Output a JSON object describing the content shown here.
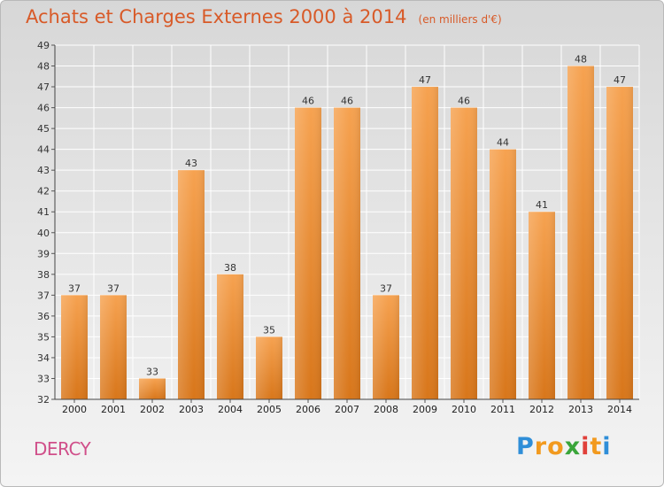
{
  "header": {
    "title": "Achats et Charges Externes 2000 à 2014",
    "unit": "(en milliers d'€)"
  },
  "footer": {
    "commune": "DERCY",
    "logo_letters": [
      "P",
      "r",
      "o",
      "x",
      "i",
      "t",
      "i"
    ],
    "logo_colors": [
      "#2f8ed8",
      "#f29a1f",
      "#f29a1f",
      "#3aa53a",
      "#e0403a",
      "#f29a1f",
      "#2f8ed8"
    ]
  },
  "chart_data": {
    "type": "bar",
    "title": "Achats et Charges Externes 2000 à 2014",
    "subtitle": "(en milliers d'€)",
    "categories": [
      "2000",
      "2001",
      "2002",
      "2003",
      "2004",
      "2005",
      "2006",
      "2007",
      "2008",
      "2009",
      "2010",
      "2011",
      "2012",
      "2013",
      "2014"
    ],
    "values": [
      37,
      37,
      33,
      43,
      38,
      35,
      46,
      46,
      37,
      47,
      46,
      44,
      41,
      48,
      47
    ],
    "ylim": [
      32,
      49
    ],
    "yticks": [
      32,
      33,
      34,
      35,
      36,
      37,
      38,
      39,
      40,
      41,
      42,
      43,
      44,
      45,
      46,
      47,
      48,
      49
    ],
    "grid": true,
    "bar_color": "#f08a2a"
  }
}
